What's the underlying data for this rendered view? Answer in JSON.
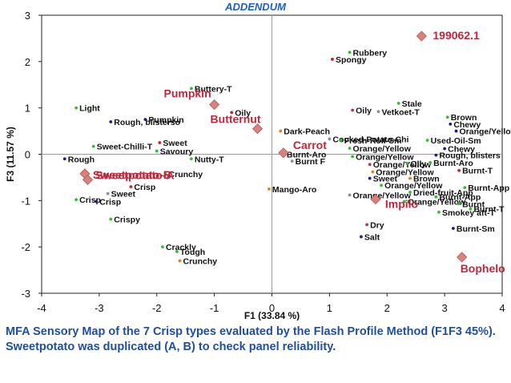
{
  "banner": "ADDENDUM",
  "caption": "MFA Sensory Map of the 7 Crisp types evaluated by the Flash Profile Method (F1F3 45%). Sweetpotato was duplicated (A, B) to check panel reliability.",
  "colors": {
    "product": "#c2263a",
    "product_marker": "#d9827c",
    "green": "#2fbf2f",
    "navy": "#1c1c8a",
    "red": "#cc2222",
    "orange": "#e67e22",
    "magenta": "#b0306a",
    "grey": "#8a8aa0",
    "text": "#111111"
  },
  "chart_data": {
    "type": "scatter",
    "title": "",
    "xlabel": "F1 (33.84 %)",
    "ylabel": "F3 (11.57 %)",
    "xlim": [
      -4,
      4
    ],
    "ylim": [
      -3,
      3
    ],
    "xticks": [
      "-4",
      "-3",
      "-2",
      "-1",
      "0",
      "1",
      "2",
      "3",
      "4"
    ],
    "yticks": [
      "3",
      "2",
      "1",
      "0",
      "-1",
      "-2",
      "-3"
    ],
    "products": [
      {
        "label": "199062.1",
        "x": 2.6,
        "y": 2.55
      },
      {
        "label": "Pumpkin",
        "x": -1.0,
        "y": 1.07
      },
      {
        "label": "Butternut",
        "x": -0.25,
        "y": 0.55
      },
      {
        "label": "Carrot",
        "x": 0.2,
        "y": 0.03
      },
      {
        "label": "Sweetpotato-B",
        "x": -3.25,
        "y": -0.42
      },
      {
        "label": "Sweetpotato-A",
        "x": -3.2,
        "y": -0.55
      },
      {
        "label": "Impilo",
        "x": 1.8,
        "y": -0.97
      },
      {
        "label": "Bophelo",
        "x": 3.3,
        "y": -2.22
      }
    ],
    "attributes": [
      {
        "label": "Rubbery",
        "x": 1.35,
        "y": 2.2,
        "color": "green"
      },
      {
        "label": "Spongy",
        "x": 1.05,
        "y": 2.05,
        "color": "red"
      },
      {
        "label": "Buttery-T",
        "x": -1.4,
        "y": 1.42,
        "color": "green"
      },
      {
        "label": "Light",
        "x": -3.4,
        "y": 1.0,
        "color": "green"
      },
      {
        "label": "Pumpkin",
        "x": -2.2,
        "y": 0.75,
        "color": "navy"
      },
      {
        "label": "Rough, blisterso",
        "x": -2.8,
        "y": 0.7,
        "color": "navy"
      },
      {
        "label": "Oily",
        "x": -0.7,
        "y": 0.9,
        "color": "red"
      },
      {
        "label": "Oily",
        "x": 1.4,
        "y": 0.95,
        "color": "magenta"
      },
      {
        "label": "Vetkoet-T",
        "x": 1.85,
        "y": 0.92,
        "color": "grey"
      },
      {
        "label": "Stale",
        "x": 2.2,
        "y": 1.1,
        "color": "green"
      },
      {
        "label": "Brown",
        "x": 3.05,
        "y": 0.8,
        "color": "green"
      },
      {
        "label": "Chewy",
        "x": 3.1,
        "y": 0.65,
        "color": "navy"
      },
      {
        "label": "Orange/Yellow",
        "x": 3.2,
        "y": 0.5,
        "color": "navy"
      },
      {
        "label": "Dark-Peach",
        "x": 0.15,
        "y": 0.5,
        "color": "orange"
      },
      {
        "label": "Cooked-Potato-Chi",
        "x": 1.0,
        "y": 0.33,
        "color": "grey"
      },
      {
        "label": "Fresh-Roll-Sm",
        "x": 1.2,
        "y": 0.3,
        "color": "green"
      },
      {
        "label": "Sweet-Chilli-T",
        "x": -3.1,
        "y": 0.17,
        "color": "green"
      },
      {
        "label": "Sweet",
        "x": -1.95,
        "y": 0.25,
        "color": "red"
      },
      {
        "label": "Savoury",
        "x": -2.0,
        "y": 0.07,
        "color": "green"
      },
      {
        "label": "Orange/Yellow",
        "x": 1.35,
        "y": 0.13,
        "color": "green"
      },
      {
        "label": "Used-Oil-Sm",
        "x": 2.7,
        "y": 0.3,
        "color": "green"
      },
      {
        "label": "Chewy",
        "x": 3.0,
        "y": 0.12,
        "color": "navy"
      },
      {
        "label": "Rough",
        "x": -3.6,
        "y": -0.1,
        "color": "navy"
      },
      {
        "label": "Nutty-T",
        "x": -1.4,
        "y": -0.1,
        "color": "green"
      },
      {
        "label": "Burnt-Aro",
        "x": 0.2,
        "y": 0.0,
        "color": "grey"
      },
      {
        "label": "Burnt F",
        "x": 0.35,
        "y": -0.15,
        "color": "grey"
      },
      {
        "label": "Orange/Yellow",
        "x": 1.4,
        "y": -0.05,
        "color": "green"
      },
      {
        "label": "Rough, blisters",
        "x": 2.85,
        "y": -0.02,
        "color": "navy"
      },
      {
        "label": "Orange/Yellow",
        "x": 1.7,
        "y": -0.22,
        "color": "magenta"
      },
      {
        "label": "Oily",
        "x": 2.35,
        "y": -0.2,
        "color": "green"
      },
      {
        "label": "Burnt-Aro",
        "x": 2.75,
        "y": -0.18,
        "color": "green"
      },
      {
        "label": "Orange/Yellow",
        "x": 1.75,
        "y": -0.38,
        "color": "orange"
      },
      {
        "label": "Burnt-T",
        "x": 3.25,
        "y": -0.35,
        "color": "red"
      },
      {
        "label": "Crunchy",
        "x": -1.85,
        "y": -0.42,
        "color": "green"
      },
      {
        "label": "Crisp",
        "x": -2.45,
        "y": -0.7,
        "color": "red"
      },
      {
        "label": "Sweet",
        "x": -2.85,
        "y": -0.85,
        "color": "grey"
      },
      {
        "label": "Crisp",
        "x": -3.4,
        "y": -0.98,
        "color": "green"
      },
      {
        "label": "Crisp",
        "x": -3.05,
        "y": -1.02,
        "color": "navy"
      },
      {
        "label": "Mango-Aro",
        "x": -0.05,
        "y": -0.75,
        "color": "orange"
      },
      {
        "label": "Sweet",
        "x": 1.7,
        "y": -0.52,
        "color": "navy"
      },
      {
        "label": "Brown",
        "x": 2.4,
        "y": -0.52,
        "color": "orange"
      },
      {
        "label": "Orange/Yellow",
        "x": 1.9,
        "y": -0.67,
        "color": "green"
      },
      {
        "label": "Burnt-App",
        "x": 3.35,
        "y": -0.72,
        "color": "green"
      },
      {
        "label": "Dried-fruit-App",
        "x": 2.4,
        "y": -0.82,
        "color": "green"
      },
      {
        "label": "Orange/Yellow",
        "x": 1.35,
        "y": -0.88,
        "color": "grey"
      },
      {
        "label": "Burnt-App",
        "x": 2.85,
        "y": -0.92,
        "color": "green"
      },
      {
        "label": "Orange/Yellow",
        "x": 2.3,
        "y": -1.02,
        "color": "green"
      },
      {
        "label": "Burnt",
        "x": 3.25,
        "y": -1.07,
        "color": "green"
      },
      {
        "label": "Burnt-T",
        "x": 3.45,
        "y": -1.18,
        "color": "green"
      },
      {
        "label": "Smokey aft-T",
        "x": 2.9,
        "y": -1.25,
        "color": "green"
      },
      {
        "label": "Crispy",
        "x": -2.8,
        "y": -1.4,
        "color": "green"
      },
      {
        "label": "Dry",
        "x": 1.65,
        "y": -1.52,
        "color": "magenta"
      },
      {
        "label": "Burnt-Sm",
        "x": 3.15,
        "y": -1.6,
        "color": "navy"
      },
      {
        "label": "Salt",
        "x": 1.55,
        "y": -1.78,
        "color": "navy"
      },
      {
        "label": "Crackly",
        "x": -1.9,
        "y": -2.0,
        "color": "green"
      },
      {
        "label": "Tough",
        "x": -1.65,
        "y": -2.1,
        "color": "green"
      },
      {
        "label": "Crunchy",
        "x": -1.6,
        "y": -2.3,
        "color": "orange"
      }
    ]
  }
}
